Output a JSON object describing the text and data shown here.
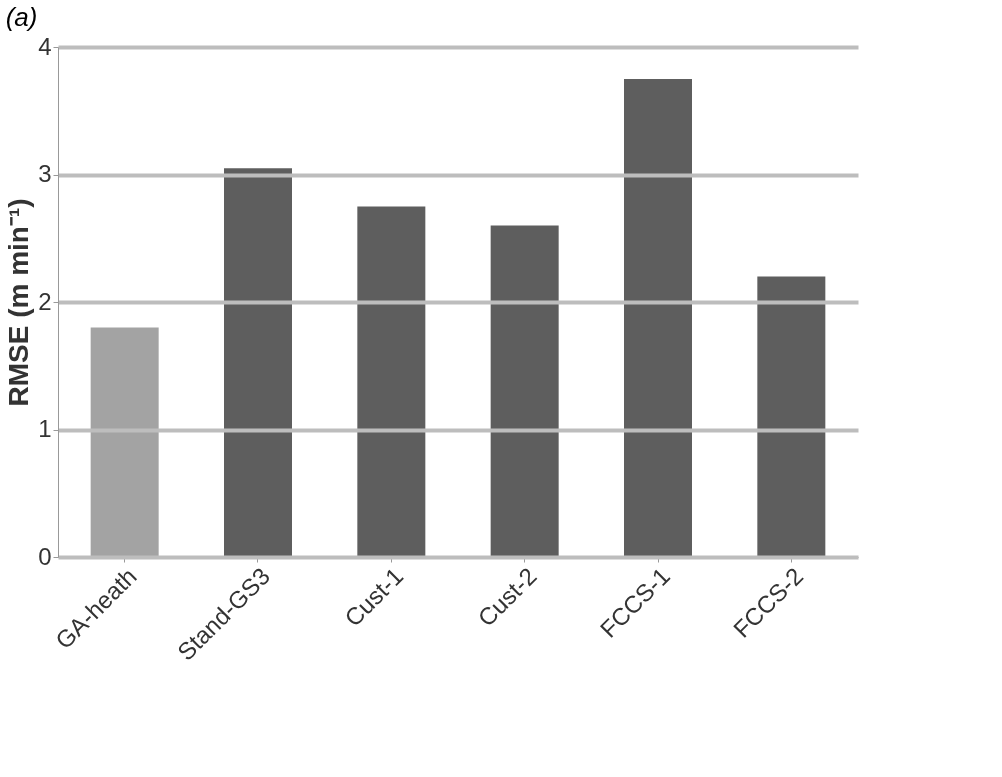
{
  "chart_data": {
    "type": "bar",
    "title": "(a)",
    "ylabel": "RMSE (m min⁻¹)",
    "categories": [
      "GA-heath",
      "Stand-GS3",
      "Cust-1",
      "Cust-2",
      "FCCS-1",
      "FCCS-2"
    ],
    "values": [
      1.8,
      3.05,
      2.75,
      2.6,
      3.75,
      2.2
    ],
    "colors": [
      "#a3a3a3",
      "#5e5e5e",
      "#5e5e5e",
      "#5e5e5e",
      "#5e5e5e",
      "#5e5e5e"
    ],
    "ylim": [
      0,
      4
    ],
    "yticks": [
      0,
      1,
      2,
      3,
      4
    ],
    "grid": "y"
  }
}
